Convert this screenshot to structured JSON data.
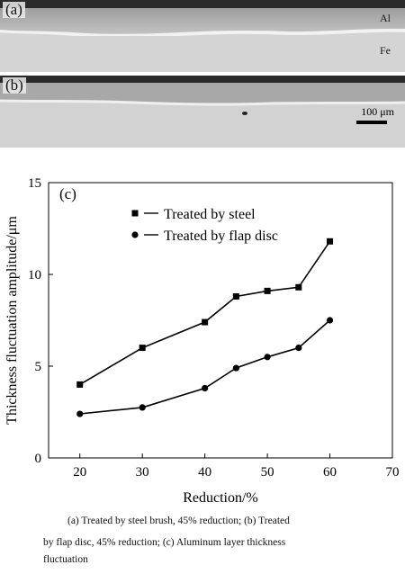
{
  "micrographs": [
    {
      "tag": "(a)",
      "top_label": "Al",
      "bottom_label": "Fe"
    },
    {
      "tag": "(b)",
      "scale_bar": "100 μm"
    }
  ],
  "chart_data": {
    "type": "line",
    "panel_label": "(c)",
    "xlabel": "Reduction/%",
    "ylabel": "Thickness fluctuation amplitude/μm",
    "xlim": [
      15,
      70
    ],
    "ylim": [
      0,
      15
    ],
    "xticks": [
      20,
      30,
      40,
      50,
      60,
      70
    ],
    "yticks": [
      0,
      5,
      10,
      15
    ],
    "legend_placement": "top-left",
    "series": [
      {
        "name": "Treated by steel",
        "marker": "square",
        "x": [
          20,
          30,
          40,
          45,
          50,
          55,
          60
        ],
        "values": [
          4.0,
          6.0,
          7.4,
          8.8,
          9.1,
          9.3,
          11.8
        ]
      },
      {
        "name": "Treated by flap disc",
        "marker": "circle",
        "x": [
          20,
          30,
          40,
          45,
          50,
          55,
          60
        ],
        "values": [
          2.4,
          2.75,
          3.8,
          4.9,
          5.5,
          6.0,
          7.5
        ]
      }
    ]
  },
  "caption": {
    "line1": "(a) Treated by steel brush, 45% reduction; (b) Treated",
    "line2": "by flap disc, 45% reduction; (c) Aluminum layer thickness",
    "line3": "fluctuation"
  }
}
